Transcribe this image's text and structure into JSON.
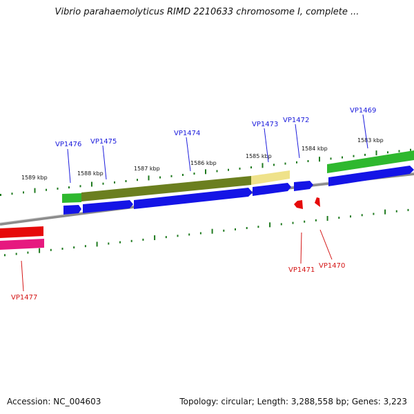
{
  "title": "Vibrio parahaemolyticus RIMD 2210633 chromosome I, complete ...",
  "footer": {
    "accession": "Accession: NC_004603",
    "summary": "Topology: circular; Length: 3,288,558 bp; Genes: 3,223"
  },
  "colors": {
    "backbone": "#8c8c8c",
    "forward_cds": "#1414e6",
    "reverse_cds": "#e60a0a",
    "gene_green": "#2eb82e",
    "gene_olive": "#6b7f1f",
    "gene_khaki": "#efe28a",
    "gene_pink": "#e6197f",
    "tick_green": "#1f7a1f"
  },
  "ticks": [
    {
      "label": "1589 kbp"
    },
    {
      "label": "1588 kbp"
    },
    {
      "label": "1587 kbp"
    },
    {
      "label": "1586 kbp"
    },
    {
      "label": "1585 kbp"
    },
    {
      "label": "1584 kbp"
    },
    {
      "label": "1583 kbp"
    }
  ],
  "genes": [
    {
      "name": "VP1477",
      "strand": "reverse"
    },
    {
      "name": "VP1476",
      "strand": "forward"
    },
    {
      "name": "VP1475",
      "strand": "forward"
    },
    {
      "name": "VP1474",
      "strand": "forward"
    },
    {
      "name": "VP1473",
      "strand": "forward"
    },
    {
      "name": "VP1472",
      "strand": "forward"
    },
    {
      "name": "VP1471",
      "strand": "reverse"
    },
    {
      "name": "VP1470",
      "strand": "reverse"
    },
    {
      "name": "VP1469",
      "strand": "forward"
    }
  ]
}
